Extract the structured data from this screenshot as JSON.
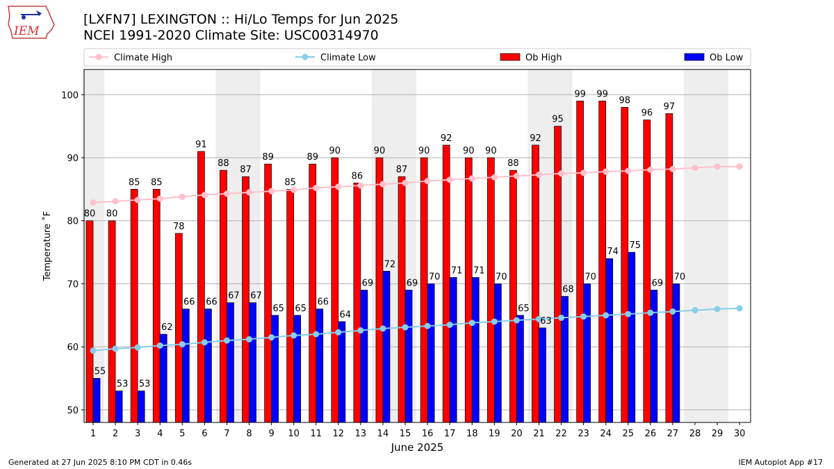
{
  "header": {
    "title_line1": "[LXFN7] LEXINGTON :: Hi/Lo Temps for Jun 2025",
    "title_line2": "NCEI 1991-2020 Climate Site: USC00314970",
    "logo_text": "IEM"
  },
  "footer": {
    "generated": "Generated at 27 Jun 2025 8:10 PM CDT in 0.46s",
    "app": "IEM Autoplot App #17"
  },
  "colors": {
    "ob_high": "#ff0000",
    "ob_low": "#0000ff",
    "climate_high": "#ffc0cb",
    "climate_low": "#87ceeb",
    "weekend_shade": "#eeeeee",
    "grid": "#b0b0b0"
  },
  "chart_data": {
    "type": "bar",
    "xlabel": "June 2025",
    "ylabel": "Temperature ˚F",
    "ylim": [
      48,
      104
    ],
    "yticks": [
      50,
      60,
      70,
      80,
      90,
      100
    ],
    "grid": "horizontal",
    "legend_placement": "top",
    "categories": [
      1,
      2,
      3,
      4,
      5,
      6,
      7,
      8,
      9,
      10,
      11,
      12,
      13,
      14,
      15,
      16,
      17,
      18,
      19,
      20,
      21,
      22,
      23,
      24,
      25,
      26,
      27,
      28,
      29,
      30
    ],
    "weekend_days": [
      1,
      7,
      8,
      14,
      15,
      21,
      22,
      28,
      29
    ],
    "series": [
      {
        "name": "Climate High",
        "kind": "line",
        "values": [
          82.9,
          83.1,
          83.3,
          83.5,
          83.8,
          84.1,
          84.3,
          84.5,
          84.7,
          84.9,
          85.2,
          85.4,
          85.6,
          85.8,
          86.0,
          86.3,
          86.5,
          86.7,
          86.9,
          87.1,
          87.3,
          87.5,
          87.6,
          87.8,
          87.9,
          88.1,
          88.2,
          88.4,
          88.6,
          88.6
        ]
      },
      {
        "name": "Climate Low",
        "kind": "line",
        "values": [
          59.4,
          59.7,
          59.9,
          60.2,
          60.4,
          60.7,
          61.0,
          61.2,
          61.5,
          61.8,
          62.0,
          62.3,
          62.6,
          62.9,
          63.1,
          63.3,
          63.5,
          63.8,
          64.0,
          64.2,
          64.4,
          64.6,
          64.8,
          65.0,
          65.2,
          65.4,
          65.6,
          65.8,
          66.0,
          66.1
        ]
      },
      {
        "name": "Ob High",
        "kind": "bar",
        "values": [
          80,
          80,
          85,
          85,
          78,
          91,
          88,
          87,
          89,
          85,
          89,
          90,
          86,
          90,
          87,
          90,
          92,
          90,
          90,
          88,
          92,
          95,
          99,
          99,
          98,
          96,
          97,
          null,
          null,
          null
        ]
      },
      {
        "name": "Ob Low",
        "kind": "bar",
        "values": [
          55,
          53,
          53,
          62,
          66,
          66,
          67,
          67,
          65,
          65,
          66,
          64,
          69,
          72,
          69,
          70,
          71,
          71,
          70,
          65,
          63,
          68,
          70,
          74,
          75,
          69,
          70,
          null,
          null,
          null
        ]
      }
    ]
  }
}
